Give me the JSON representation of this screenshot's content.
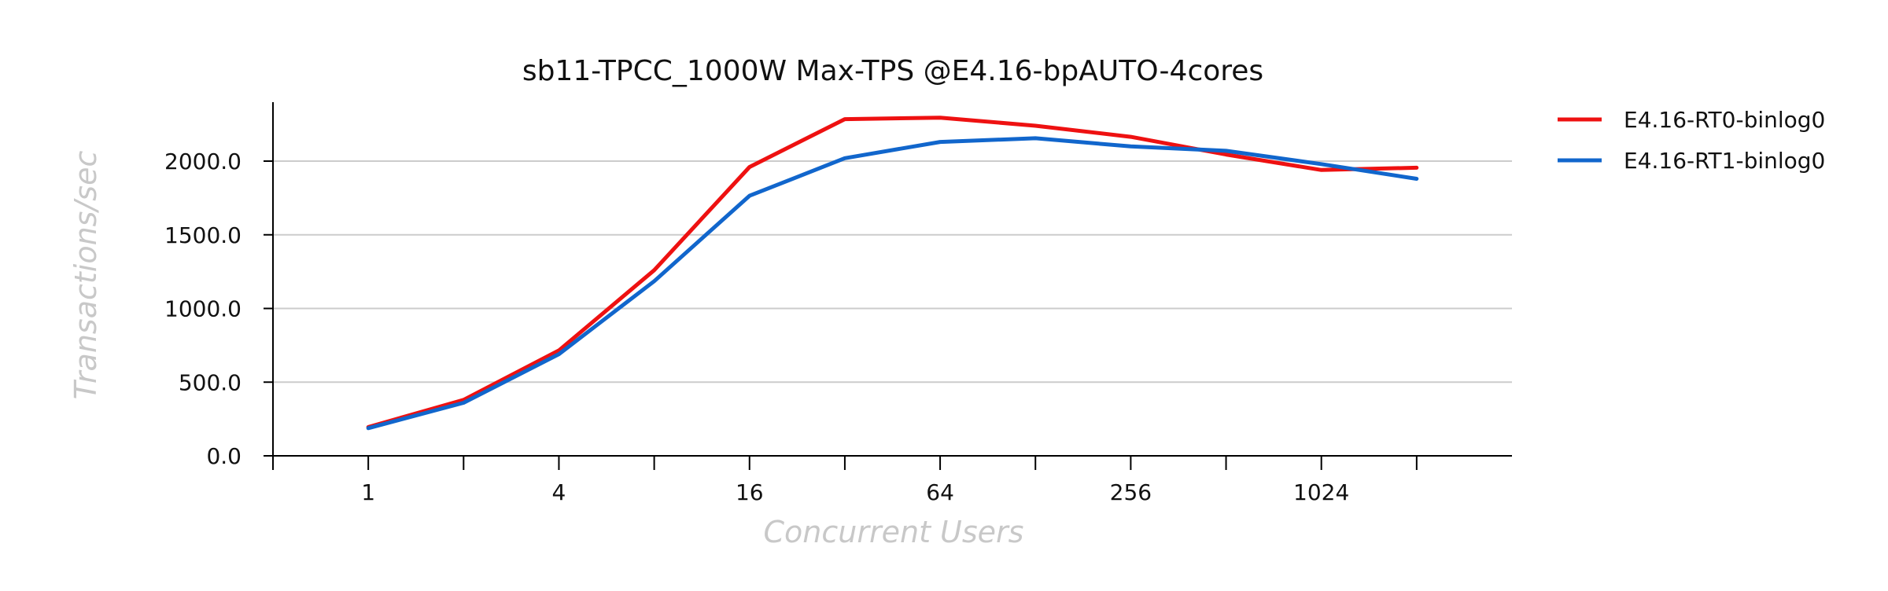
{
  "chart_data": {
    "type": "line",
    "title": "sb11-TPCC_1000W Max-TPS @E4.16-bpAUTO-4cores",
    "xlabel": "Concurrent Users",
    "ylabel": "Transactions/sec",
    "x": [
      1,
      2,
      4,
      8,
      16,
      32,
      64,
      128,
      256,
      512,
      1024,
      2048
    ],
    "x_scale": "log2",
    "x_tick_labels": [
      "1",
      "4",
      "16",
      "64",
      "256",
      "1024"
    ],
    "x_tick_values": [
      1,
      4,
      16,
      64,
      256,
      1024
    ],
    "x_minor_ticks": [
      0.5,
      2,
      8,
      32,
      128,
      512,
      2048
    ],
    "xlim": [
      0.5,
      4096
    ],
    "ylim": [
      0,
      2400
    ],
    "y_ticks": [
      0,
      500,
      1000,
      1500,
      2000
    ],
    "y_tick_labels": [
      "0.0",
      "500.0",
      "1000.0",
      "1500.0",
      "2000.0"
    ],
    "grid": "horizontal",
    "legend_position": "right",
    "series": [
      {
        "name": "E4.16-RT0-binlog0",
        "color": "#ee1111",
        "values": [
          195,
          380,
          715,
          1260,
          1960,
          2285,
          2295,
          2240,
          2165,
          2045,
          1940,
          1955
        ]
      },
      {
        "name": "E4.16-RT1-binlog0",
        "color": "#1166cc",
        "values": [
          188,
          360,
          690,
          1185,
          1765,
          2020,
          2130,
          2155,
          2100,
          2070,
          1980,
          1880
        ]
      }
    ]
  }
}
